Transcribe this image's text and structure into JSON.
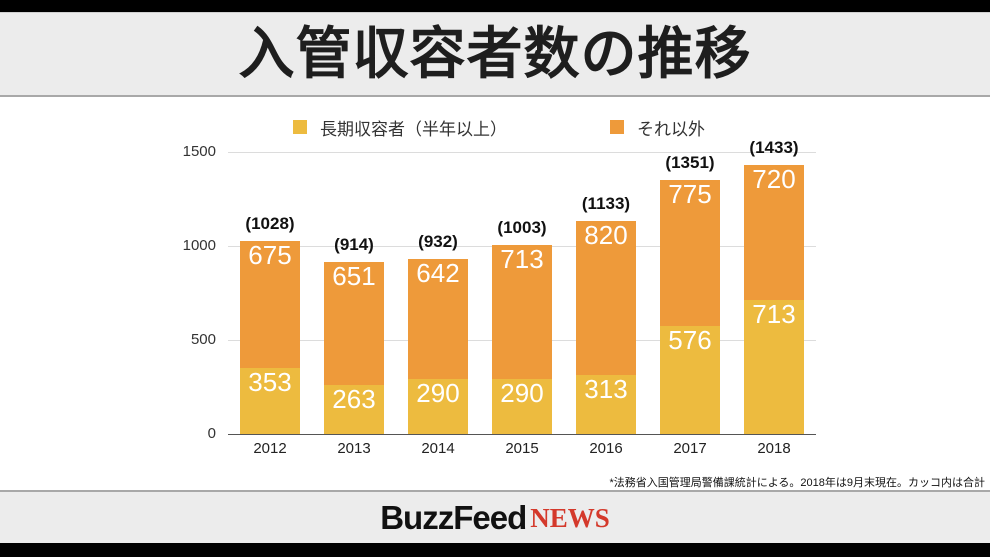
{
  "header": {
    "title": "入管収容者数の推移"
  },
  "legend": [
    {
      "label": "長期収容者（半年以上）",
      "color": "#EDBB3F"
    },
    {
      "label": "それ以外",
      "color": "#EE9A3A"
    }
  ],
  "footnote": "*法務省入国管理局警備課統計による。2018年は9月末現在。カッコ内は合計",
  "footer": {
    "logo_main": "BuzzFeed",
    "logo_sub": "NEWS"
  },
  "chart_data": {
    "type": "bar",
    "stacked": true,
    "title": "入管収容者数の推移",
    "xlabel": "",
    "ylabel": "",
    "categories": [
      "2012",
      "2013",
      "2014",
      "2015",
      "2016",
      "2017",
      "2018"
    ],
    "series": [
      {
        "name": "長期収容者（半年以上）",
        "color": "#EDBB3F",
        "values": [
          353,
          263,
          290,
          290,
          313,
          576,
          713
        ]
      },
      {
        "name": "それ以外",
        "color": "#EE9A3A",
        "values": [
          675,
          651,
          642,
          713,
          820,
          775,
          720
        ]
      }
    ],
    "totals": [
      1028,
      914,
      932,
      1003,
      1133,
      1351,
      1433
    ],
    "total_labels": [
      "(1028)",
      "(914)",
      "(932)",
      "(1003)",
      "(1133)",
      "(1351)",
      "(1433)"
    ],
    "yticks": [
      0,
      500,
      1000,
      1500
    ],
    "ylim": [
      0,
      1500
    ],
    "grid": true,
    "legend_position": "top"
  }
}
